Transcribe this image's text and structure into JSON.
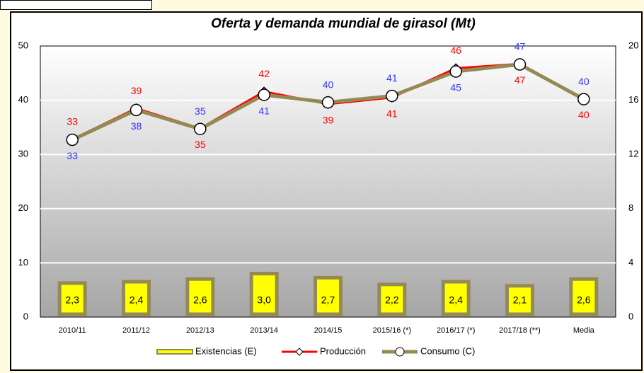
{
  "chart_data": {
    "type": "bar_line",
    "title": "Oferta y demanda mundial de girasol (Mt)",
    "categories": [
      "2010/11",
      "2011/12",
      "2012/13",
      "2013/14",
      "2014/15",
      "2015/16 (*)",
      "2016/17 (*)",
      "2017/18 (**)",
      "Media"
    ],
    "ylim": [
      0,
      50
    ],
    "yticks": [
      0,
      10,
      20,
      30,
      40,
      50
    ],
    "y2lim": [
      0,
      20
    ],
    "y2ticks": [
      0,
      4,
      8,
      12,
      16,
      20
    ],
    "grid": true,
    "legend": "bottom",
    "series": [
      {
        "name": "Existencias (E)",
        "type": "bar",
        "axis": "y2",
        "color": "#ffff00",
        "edge_color": "#948a54",
        "values": [
          2.3,
          2.4,
          2.6,
          3.0,
          2.7,
          2.2,
          2.4,
          2.1,
          2.6
        ],
        "value_labels": [
          "2,3",
          "2,4",
          "2,6",
          "3,0",
          "2,7",
          "2,2",
          "2,4",
          "2,1",
          "2,6"
        ]
      },
      {
        "name": "Producción",
        "type": "line",
        "color": "#ff0000",
        "values": [
          32.8,
          38.5,
          34.8,
          41.6,
          39.3,
          40.5,
          45.9,
          46.7,
          40.3
        ],
        "value_labels": [
          "33",
          "39",
          "35",
          "42",
          "39",
          "41",
          "46",
          "47",
          "40"
        ]
      },
      {
        "name": "Consumo (C)",
        "type": "line",
        "color": "#948a54",
        "label_color": "#3333ff",
        "values": [
          32.7,
          38.2,
          34.7,
          41.0,
          39.6,
          40.8,
          45.3,
          46.6,
          40.2
        ],
        "value_labels": [
          "33",
          "38",
          "35",
          "41",
          "40",
          "41",
          "45",
          "47",
          "40"
        ]
      }
    ]
  }
}
